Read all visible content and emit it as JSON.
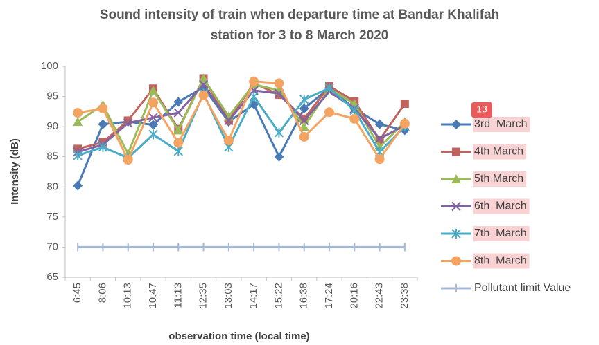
{
  "chart_data": {
    "type": "line",
    "title": [
      "Sound intensity of train when departure time at Bandar Khalifah",
      "station for 3 to 8 March 2020"
    ],
    "x_label": "observation time (local time)",
    "y_label": "Intensity (dB)",
    "badge": "13",
    "categories": [
      "6:45",
      "8:06",
      "10:13",
      "10.47",
      "11:13",
      "12:35",
      "13:03",
      "14:17",
      "15:22",
      "16:38",
      "17:24",
      "20:16",
      "22:43",
      "23:38"
    ],
    "ylim": [
      65,
      100
    ],
    "yticks": [
      65,
      70,
      75,
      80,
      85,
      90,
      95,
      100
    ],
    "grid": false,
    "legend": "right",
    "series": [
      {
        "name": "3rd  March",
        "color": "#4a7ab5",
        "marker": "diamond",
        "values": [
          80.2,
          90.4,
          90.8,
          90.3,
          94.1,
          96.5,
          90.8,
          93.7,
          85.0,
          93.0,
          96.4,
          93.0,
          90.4,
          89.4
        ]
      },
      {
        "name": "4th March",
        "color": "#c0625e",
        "marker": "square",
        "values": [
          86.3,
          87.4,
          91.0,
          96.3,
          89.6,
          98.0,
          91.0,
          97.2,
          95.3,
          91.3,
          96.7,
          94.2,
          87.8,
          93.8
        ]
      },
      {
        "name": "5th March",
        "color": "#9bbb59",
        "marker": "triangle",
        "values": [
          90.8,
          93.6,
          85.5,
          96.0,
          89.4,
          98.0,
          91.7,
          97.0,
          96.0,
          90.0,
          96.3,
          93.8,
          86.6,
          90.8
        ]
      },
      {
        "name": "6th  March",
        "color": "#8064a2",
        "marker": "x",
        "values": [
          85.8,
          87.0,
          90.6,
          91.5,
          92.3,
          97.0,
          91.0,
          96.0,
          95.5,
          91.0,
          95.8,
          93.0,
          88.0,
          90.2
        ]
      },
      {
        "name": "7th  March",
        "color": "#4bacc6",
        "marker": "star",
        "values": [
          85.2,
          86.6,
          84.8,
          88.7,
          85.9,
          95.5,
          86.6,
          95.0,
          89.0,
          94.5,
          96.4,
          92.7,
          85.8,
          90.0
        ]
      },
      {
        "name": "8th  March",
        "color": "#f4a460",
        "marker": "circle",
        "values": [
          92.3,
          93.0,
          84.5,
          94.0,
          87.3,
          95.2,
          87.7,
          97.5,
          97.2,
          88.3,
          92.4,
          91.3,
          84.6,
          90.5
        ]
      },
      {
        "name": "Pollutant limit Value",
        "color": "#a5b8d8",
        "marker": "plus",
        "values": [
          70,
          70,
          70,
          70,
          70,
          70,
          70,
          70,
          70,
          70,
          70,
          70,
          70,
          70
        ]
      }
    ]
  }
}
